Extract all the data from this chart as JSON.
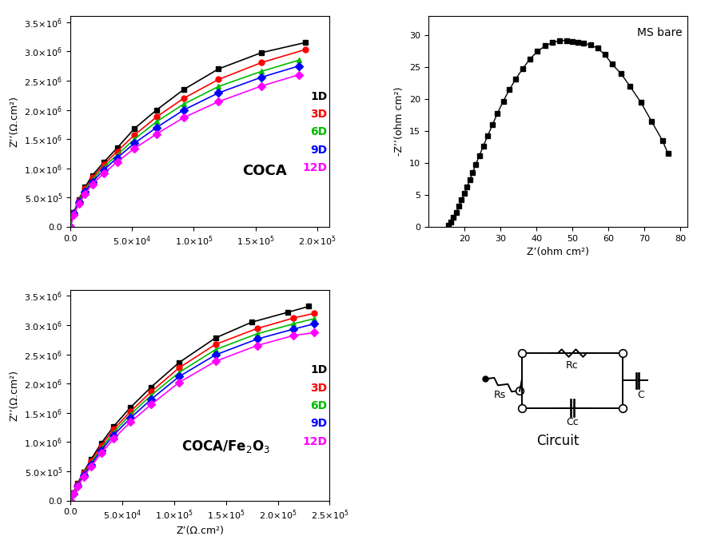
{
  "coca_x": {
    "1D": [
      0,
      3000,
      7000,
      12000,
      18000,
      27000,
      38000,
      52000,
      70000,
      92000,
      120000,
      155000,
      190000
    ],
    "3D": [
      0,
      3000,
      7000,
      12000,
      18000,
      27000,
      38000,
      52000,
      70000,
      92000,
      120000,
      155000,
      190000
    ],
    "6D": [
      0,
      3000,
      7000,
      12000,
      18000,
      27000,
      38000,
      52000,
      70000,
      92000,
      120000,
      155000,
      185000
    ],
    "9D": [
      0,
      3000,
      7000,
      12000,
      18000,
      27000,
      38000,
      52000,
      70000,
      92000,
      120000,
      155000,
      185000
    ],
    "12D": [
      0,
      3000,
      7000,
      12000,
      18000,
      27000,
      38000,
      52000,
      70000,
      92000,
      120000,
      155000,
      185000
    ]
  },
  "coca_y": {
    "1D": [
      0,
      250000,
      470000,
      680000,
      880000,
      1100000,
      1350000,
      1680000,
      2000000,
      2350000,
      2700000,
      2980000,
      3150000
    ],
    "3D": [
      0,
      240000,
      450000,
      650000,
      840000,
      1060000,
      1290000,
      1570000,
      1880000,
      2200000,
      2520000,
      2810000,
      3030000
    ],
    "6D": [
      0,
      235000,
      440000,
      630000,
      810000,
      1020000,
      1230000,
      1500000,
      1800000,
      2100000,
      2400000,
      2660000,
      2850000
    ],
    "9D": [
      0,
      225000,
      420000,
      600000,
      770000,
      970000,
      1180000,
      1430000,
      1700000,
      2000000,
      2290000,
      2560000,
      2750000
    ],
    "12D": [
      0,
      210000,
      395000,
      565000,
      730000,
      910000,
      1110000,
      1340000,
      1590000,
      1870000,
      2140000,
      2410000,
      2600000
    ]
  },
  "nano_x": {
    "1D": [
      0,
      3000,
      7000,
      13000,
      20000,
      30000,
      42000,
      58000,
      78000,
      105000,
      140000,
      175000,
      210000,
      230000
    ],
    "3D": [
      0,
      3000,
      7000,
      13000,
      20000,
      30000,
      42000,
      58000,
      78000,
      105000,
      140000,
      180000,
      215000,
      235000
    ],
    "6D": [
      0,
      3000,
      7000,
      13000,
      20000,
      30000,
      42000,
      58000,
      78000,
      105000,
      140000,
      180000,
      215000,
      235000
    ],
    "9D": [
      0,
      3000,
      7000,
      13000,
      20000,
      30000,
      42000,
      58000,
      78000,
      105000,
      140000,
      180000,
      215000,
      235000
    ],
    "12D": [
      0,
      3000,
      7000,
      13000,
      20000,
      30000,
      42000,
      58000,
      78000,
      105000,
      140000,
      180000,
      215000,
      235000
    ]
  },
  "nano_y": {
    "1D": [
      0,
      130000,
      290000,
      490000,
      700000,
      980000,
      1270000,
      1590000,
      1940000,
      2360000,
      2780000,
      3050000,
      3220000,
      3320000
    ],
    "3D": [
      0,
      125000,
      280000,
      470000,
      670000,
      940000,
      1220000,
      1520000,
      1860000,
      2270000,
      2670000,
      2940000,
      3120000,
      3200000
    ],
    "6D": [
      0,
      120000,
      265000,
      450000,
      640000,
      895000,
      1170000,
      1470000,
      1800000,
      2190000,
      2580000,
      2850000,
      3020000,
      3110000
    ],
    "9D": [
      0,
      115000,
      255000,
      430000,
      615000,
      860000,
      1120000,
      1410000,
      1730000,
      2120000,
      2490000,
      2760000,
      2930000,
      3020000
    ],
    "12D": [
      0,
      110000,
      240000,
      405000,
      580000,
      810000,
      1060000,
      1340000,
      1640000,
      2020000,
      2380000,
      2650000,
      2820000,
      2870000
    ]
  },
  "ms_x": [
    15.5,
    16.2,
    17.0,
    17.8,
    18.5,
    19.2,
    20.0,
    20.8,
    21.5,
    22.3,
    23.2,
    24.2,
    25.3,
    26.5,
    27.8,
    29.2,
    30.8,
    32.5,
    34.3,
    36.2,
    38.2,
    40.3,
    42.5,
    44.5,
    46.5,
    48.5,
    50.0,
    51.5,
    53.0,
    55.0,
    57.0,
    59.0,
    61.0,
    63.5,
    66.0,
    69.0,
    72.0,
    75.0,
    76.5
  ],
  "ms_y": [
    0.3,
    0.8,
    1.5,
    2.3,
    3.2,
    4.2,
    5.2,
    6.3,
    7.4,
    8.5,
    9.8,
    11.2,
    12.7,
    14.3,
    16.0,
    17.8,
    19.7,
    21.5,
    23.2,
    24.8,
    26.3,
    27.5,
    28.4,
    28.9,
    29.2,
    29.2,
    29.1,
    28.9,
    28.8,
    28.5,
    28.0,
    27.0,
    25.5,
    24.0,
    22.0,
    19.5,
    16.5,
    13.5,
    11.5
  ],
  "colors": {
    "1D": "#000000",
    "3D": "#ff0000",
    "6D": "#00bb00",
    "9D": "#0000ff",
    "12D": "#ff00ff"
  },
  "markers": {
    "1D": "s",
    "3D": "o",
    "6D": "^",
    "9D": "D",
    "12D": "D"
  },
  "legend_labels": [
    "1D",
    "3D",
    "6D",
    "9D",
    "12D"
  ],
  "coca_title": "COCA",
  "ylabel_coca": "Z’’(Ω.cm²)",
  "ylabel_nano": "Z’’(Ω.cm²)",
  "ylabel_ms": "-Z’’(ohm cm²)",
  "xlabel_bottom": "Z’(Ω.cm²)",
  "xlabel_ms": "Z’(ohm cm²)",
  "xlim_coca": [
    0,
    210000
  ],
  "ylim_coca": [
    0,
    3600000
  ],
  "xlim_nano": [
    0,
    250000
  ],
  "ylim_nano": [
    0,
    3600000
  ],
  "xlim_ms": [
    10,
    82
  ],
  "ylim_ms": [
    0,
    33
  ],
  "xticks_coca": [
    0,
    50000,
    100000,
    150000,
    200000
  ],
  "yticks_coca": [
    0,
    500000,
    1000000,
    1500000,
    2000000,
    2500000,
    3000000,
    3500000
  ],
  "xticks_nano": [
    0,
    50000,
    100000,
    150000,
    200000,
    250000
  ],
  "yticks_nano": [
    0,
    500000,
    1000000,
    1500000,
    2000000,
    2500000,
    3000000,
    3500000
  ],
  "xticks_ms": [
    20,
    30,
    40,
    50,
    60,
    70,
    80
  ],
  "yticks_ms": [
    0,
    5,
    10,
    15,
    20,
    25,
    30
  ],
  "circuit_title": "Circuit",
  "ms_title": "MS bare"
}
